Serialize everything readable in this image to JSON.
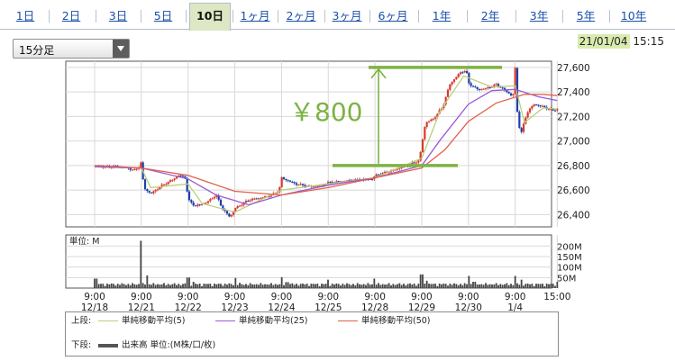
{
  "tabs": [
    {
      "label": "1日",
      "active": false
    },
    {
      "label": "2日",
      "active": false
    },
    {
      "label": "3日",
      "active": false
    },
    {
      "label": "5日",
      "active": false
    },
    {
      "label": "10日",
      "active": true
    },
    {
      "label": "1ヶ月",
      "active": false
    },
    {
      "label": "2ヶ月",
      "active": false
    },
    {
      "label": "3ヶ月",
      "active": false
    },
    {
      "label": "6ヶ月",
      "active": false
    },
    {
      "label": "1年",
      "active": false
    },
    {
      "label": "2年",
      "active": false
    },
    {
      "label": "3年",
      "active": false
    },
    {
      "label": "5年",
      "active": false
    },
    {
      "label": "10年",
      "active": false
    }
  ],
  "interval_select": {
    "value": "15分足"
  },
  "header": {
    "date": "21/01/04",
    "time": "15:15"
  },
  "legend": {
    "upper_label": "上段:",
    "lower_label": "下段:",
    "items": [
      {
        "label": "単純移動平均(5)",
        "color": "#b9cf7a"
      },
      {
        "label": "単純移動平均(25)",
        "color": "#9b59d6"
      },
      {
        "label": "単純移動平均(50)",
        "color": "#e0624e"
      }
    ],
    "volume_label": "出来高 単位:(M株/口/枚)"
  },
  "chart_data": [
    {
      "type": "candlestick",
      "title": "",
      "ylim": [
        26300,
        27650
      ],
      "yticks": [
        "26,400",
        "26,600",
        "26,800",
        "27,000",
        "27,200",
        "27,400",
        "27,600"
      ],
      "grid": true,
      "y_axis_position": "right",
      "x_tick_labels": [
        {
          "time": "9:00",
          "date": "12/18"
        },
        {
          "time": "9:00",
          "date": "12/21"
        },
        {
          "time": "9:00",
          "date": "12/22"
        },
        {
          "time": "9:00",
          "date": "12/23"
        },
        {
          "time": "9:00",
          "date": "12/24"
        },
        {
          "time": "9:00",
          "date": "12/25"
        },
        {
          "time": "9:00",
          "date": "12/28"
        },
        {
          "time": "9:00",
          "date": "12/29"
        },
        {
          "time": "9:00",
          "date": "12/30"
        },
        {
          "time": "9:00",
          "date": "1/4"
        },
        {
          "time": "15:00",
          "date": ""
        }
      ],
      "price_path": [
        [
          0,
          26800
        ],
        [
          0.25,
          26790
        ],
        [
          0.5,
          26795
        ],
        [
          0.7,
          26780
        ],
        [
          0.85,
          26760
        ],
        [
          0.95,
          26790
        ],
        [
          1.0,
          26830
        ],
        [
          1.05,
          26620
        ],
        [
          1.2,
          26570
        ],
        [
          1.45,
          26640
        ],
        [
          1.65,
          26680
        ],
        [
          1.8,
          26720
        ],
        [
          1.95,
          26700
        ],
        [
          2.0,
          26520
        ],
        [
          2.15,
          26470
        ],
        [
          2.4,
          26500
        ],
        [
          2.6,
          26560
        ],
        [
          2.75,
          26440
        ],
        [
          2.9,
          26380
        ],
        [
          3.0,
          26450
        ],
        [
          3.3,
          26520
        ],
        [
          3.6,
          26540
        ],
        [
          3.8,
          26560
        ],
        [
          3.95,
          26600
        ],
        [
          4.0,
          26700
        ],
        [
          4.3,
          26650
        ],
        [
          4.6,
          26630
        ],
        [
          4.9,
          26640
        ],
        [
          5.0,
          26660
        ],
        [
          5.5,
          26680
        ],
        [
          5.95,
          26690
        ],
        [
          6.0,
          26720
        ],
        [
          6.3,
          26750
        ],
        [
          6.6,
          26790
        ],
        [
          6.95,
          26840
        ],
        [
          7.0,
          26970
        ],
        [
          7.08,
          27150
        ],
        [
          7.25,
          27180
        ],
        [
          7.45,
          27280
        ],
        [
          7.6,
          27460
        ],
        [
          7.8,
          27550
        ],
        [
          7.95,
          27580
        ],
        [
          8.0,
          27470
        ],
        [
          8.2,
          27420
        ],
        [
          8.4,
          27430
        ],
        [
          8.6,
          27460
        ],
        [
          8.8,
          27410
        ],
        [
          8.95,
          27360
        ],
        [
          9.0,
          27590
        ],
        [
          9.05,
          27200
        ],
        [
          9.12,
          27050
        ],
        [
          9.25,
          27230
        ],
        [
          9.4,
          27300
        ],
        [
          9.6,
          27280
        ],
        [
          9.8,
          27250
        ],
        [
          9.9,
          27260
        ]
      ],
      "moving_averages": [
        {
          "name": "単純移動平均(5)",
          "values": [
            [
              0,
              26790
            ],
            [
              1.0,
              26780
            ],
            [
              1.2,
              26620
            ],
            [
              2.0,
              26650
            ],
            [
              2.3,
              26490
            ],
            [
              3.0,
              26420
            ],
            [
              4.0,
              26600
            ],
            [
              5.0,
              26650
            ],
            [
              6.0,
              26700
            ],
            [
              7.0,
              26860
            ],
            [
              7.4,
              27250
            ],
            [
              7.9,
              27530
            ],
            [
              8.5,
              27440
            ],
            [
              9.0,
              27450
            ],
            [
              9.2,
              27150
            ],
            [
              9.6,
              27270
            ],
            [
              9.9,
              27260
            ]
          ]
        },
        {
          "name": "単純移動平均(25)",
          "values": [
            [
              0,
              26790
            ],
            [
              1.0,
              26780
            ],
            [
              2.0,
              26690
            ],
            [
              2.6,
              26560
            ],
            [
              3.3,
              26480
            ],
            [
              4.0,
              26560
            ],
            [
              5.0,
              26640
            ],
            [
              6.0,
              26700
            ],
            [
              7.0,
              26800
            ],
            [
              7.4,
              27010
            ],
            [
              8.0,
              27300
            ],
            [
              8.5,
              27410
            ],
            [
              9.0,
              27420
            ],
            [
              9.5,
              27360
            ],
            [
              9.9,
              27330
            ]
          ]
        },
        {
          "name": "単純移動平均(50)",
          "values": [
            [
              0,
              26800
            ],
            [
              1.0,
              26780
            ],
            [
              2.0,
              26720
            ],
            [
              3.0,
              26590
            ],
            [
              4.0,
              26560
            ],
            [
              5.0,
              26620
            ],
            [
              6.0,
              26700
            ],
            [
              7.0,
              26780
            ],
            [
              7.5,
              26930
            ],
            [
              8.0,
              27160
            ],
            [
              8.6,
              27310
            ],
            [
              9.2,
              27380
            ],
            [
              9.6,
              27380
            ],
            [
              9.9,
              27370
            ]
          ]
        }
      ],
      "annotation": {
        "text": "￥800",
        "low": 26800,
        "high": 27600,
        "color": "#7db342"
      }
    },
    {
      "type": "bar",
      "title": "",
      "ylabel": "単位: M",
      "ylim": [
        0,
        240
      ],
      "yticks": [
        "50M",
        "100M",
        "150M",
        "200M"
      ],
      "spikes": [
        [
          0.02,
          45
        ],
        [
          1.0,
          225
        ],
        [
          1.12,
          60
        ],
        [
          2.0,
          50
        ],
        [
          2.12,
          30
        ],
        [
          3.0,
          48
        ],
        [
          3.12,
          25
        ],
        [
          4.0,
          52
        ],
        [
          4.12,
          28
        ],
        [
          5.0,
          40
        ],
        [
          6.0,
          45
        ],
        [
          7.0,
          65
        ],
        [
          7.1,
          35
        ],
        [
          8.0,
          58
        ],
        [
          8.12,
          30
        ],
        [
          9.0,
          58
        ],
        [
          9.12,
          40
        ],
        [
          9.9,
          30
        ]
      ]
    }
  ]
}
